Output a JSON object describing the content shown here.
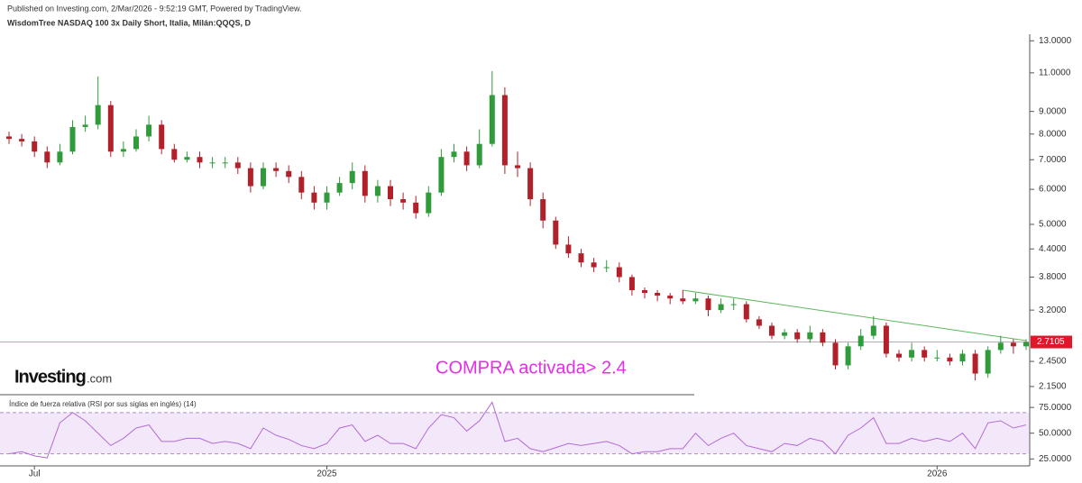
{
  "chart_data": [
    {
      "type": "candlestick",
      "subtitle": "Published on Investing.com, 2/Mar/2026 - 9:52:19 GMT, Powered by TradingView.",
      "title": "WisdomTree NASDAQ 100 3x Daily Short, Italia, Milán:QQQS, D",
      "annotation": "COMPRA activada> 2.4",
      "logo": {
        "name": "Investing",
        "suffix": ".com"
      },
      "categories": [
        null,
        null,
        "Jul",
        null,
        null,
        null,
        null,
        null,
        null,
        null,
        null,
        null,
        null,
        null,
        null,
        null,
        null,
        null,
        null,
        null,
        null,
        null,
        null,
        null,
        null,
        "2025",
        null,
        null,
        null,
        null,
        null,
        null,
        null,
        null,
        null,
        null,
        null,
        null,
        null,
        null,
        null,
        null,
        null,
        null,
        null,
        null,
        null,
        null,
        null,
        null,
        null,
        null,
        null,
        null,
        null,
        null,
        null,
        null,
        null,
        null,
        null,
        null,
        null,
        null,
        null,
        null,
        null,
        null,
        null,
        null,
        null,
        null,
        null,
        "2026",
        null,
        null,
        null,
        null,
        null,
        null,
        null
      ],
      "open": [
        7.9,
        7.8,
        7.7,
        7.3,
        6.9,
        7.3,
        8.3,
        8.4,
        9.3,
        7.3,
        7.4,
        7.9,
        8.4,
        7.4,
        7.0,
        7.1,
        6.9,
        6.9,
        6.9,
        6.7,
        6.1,
        6.7,
        6.6,
        6.4,
        5.9,
        5.6,
        5.9,
        6.2,
        6.6,
        5.8,
        6.1,
        5.7,
        5.6,
        5.3,
        5.9,
        7.1,
        7.3,
        6.8,
        7.6,
        9.8,
        6.8,
        6.7,
        5.7,
        5.1,
        4.5,
        4.3,
        4.1,
        4.0,
        4.0,
        3.8,
        3.55,
        3.5,
        3.45,
        3.4,
        3.35,
        3.4,
        3.2,
        3.3,
        3.3,
        3.05,
        2.95,
        2.8,
        2.85,
        2.75,
        2.85,
        2.7,
        2.4,
        2.65,
        2.8,
        2.95,
        2.55,
        2.5,
        2.6,
        2.5,
        2.5,
        2.45,
        2.55,
        2.3,
        2.6,
        2.7,
        2.65
      ],
      "high": [
        8.1,
        8.0,
        7.9,
        7.5,
        7.6,
        8.6,
        8.8,
        10.8,
        9.5,
        7.7,
        8.2,
        8.8,
        8.6,
        7.6,
        7.3,
        7.3,
        7.1,
        7.1,
        7.1,
        6.9,
        6.9,
        6.9,
        6.8,
        6.6,
        6.1,
        6.1,
        6.4,
        6.9,
        6.8,
        6.3,
        6.3,
        5.9,
        5.8,
        6.1,
        7.4,
        7.6,
        7.5,
        8.2,
        11.1,
        10.2,
        7.3,
        6.9,
        5.9,
        5.2,
        4.7,
        4.4,
        4.2,
        4.15,
        4.1,
        3.85,
        3.6,
        3.55,
        3.5,
        3.55,
        3.5,
        3.45,
        3.4,
        3.4,
        3.35,
        3.1,
        3.0,
        2.9,
        2.9,
        2.95,
        2.9,
        2.75,
        2.7,
        2.9,
        3.1,
        3.0,
        2.6,
        2.7,
        2.65,
        2.6,
        2.55,
        2.6,
        2.6,
        2.65,
        2.8,
        2.75,
        2.75
      ],
      "low": [
        7.6,
        7.5,
        7.1,
        6.7,
        6.8,
        7.2,
        8.1,
        8.2,
        7.1,
        7.1,
        7.3,
        7.7,
        7.2,
        6.9,
        6.9,
        6.7,
        6.7,
        6.7,
        6.5,
        5.9,
        6.0,
        6.4,
        6.2,
        5.7,
        5.4,
        5.4,
        5.8,
        6.0,
        5.6,
        5.6,
        5.5,
        5.4,
        5.15,
        5.2,
        5.8,
        6.9,
        6.6,
        6.7,
        7.5,
        6.5,
        6.4,
        5.5,
        4.9,
        4.4,
        4.2,
        4.0,
        3.9,
        3.9,
        3.7,
        3.45,
        3.4,
        3.35,
        3.3,
        3.3,
        3.3,
        3.1,
        3.15,
        3.2,
        3.0,
        2.9,
        2.75,
        2.75,
        2.7,
        2.7,
        2.65,
        2.35,
        2.35,
        2.6,
        2.75,
        2.5,
        2.45,
        2.45,
        2.45,
        2.45,
        2.4,
        2.4,
        2.22,
        2.25,
        2.55,
        2.55,
        2.6
      ],
      "close": [
        7.8,
        7.7,
        7.3,
        6.9,
        7.3,
        8.3,
        8.4,
        9.3,
        7.3,
        7.4,
        7.9,
        8.4,
        7.4,
        7.0,
        7.1,
        6.9,
        6.9,
        6.9,
        6.7,
        6.1,
        6.7,
        6.6,
        6.4,
        5.9,
        5.6,
        5.9,
        6.2,
        6.6,
        5.8,
        6.1,
        5.7,
        5.6,
        5.3,
        5.9,
        7.1,
        7.3,
        6.8,
        7.6,
        9.8,
        6.8,
        6.7,
        5.7,
        5.1,
        4.5,
        4.3,
        4.1,
        4.0,
        4.0,
        3.8,
        3.55,
        3.5,
        3.45,
        3.4,
        3.35,
        3.4,
        3.2,
        3.3,
        3.3,
        3.05,
        2.95,
        2.8,
        2.85,
        2.75,
        2.85,
        2.7,
        2.4,
        2.65,
        2.8,
        2.95,
        2.55,
        2.5,
        2.6,
        2.5,
        2.5,
        2.45,
        2.55,
        2.3,
        2.6,
        2.7,
        2.65,
        2.71
      ],
      "up_color": "#2f9b3a",
      "down_color": "#b3202a",
      "log_scale": true,
      "ylim": [
        2.07,
        13.45
      ],
      "yticks": [
        {
          "value": 13,
          "label": "13.0000"
        },
        {
          "value": 11,
          "label": "11.0000"
        },
        {
          "value": 9,
          "label": "9.0000"
        },
        {
          "value": 8,
          "label": "8.0000"
        },
        {
          "value": 7,
          "label": "7.0000"
        },
        {
          "value": 6,
          "label": "6.0000"
        },
        {
          "value": 5,
          "label": "5.0000"
        },
        {
          "value": 4.4,
          "label": "4.4000"
        },
        {
          "value": 3.8,
          "label": "3.8000"
        },
        {
          "value": 3.2,
          "label": "3.2000"
        },
        {
          "value": 2.45,
          "label": "2.4500"
        },
        {
          "value": 2.15,
          "label": "2.1500"
        }
      ],
      "last_price": {
        "value": 2.7105,
        "label": "2.7105",
        "color": "#e0162b",
        "line_color": "#f08cb4"
      },
      "trendline": {
        "x": [
          53,
          80
        ],
        "values": [
          3.55,
          2.73
        ],
        "color": "#5cb85c"
      },
      "annotation_color": "#e62ee6"
    },
    {
      "type": "line",
      "title": "Índice de fuerza relativa (RSI por sus siglas en inglés) (14)",
      "values": [
        30,
        32,
        28,
        26,
        60,
        70,
        62,
        50,
        38,
        45,
        55,
        58,
        42,
        42,
        45,
        45,
        40,
        42,
        40,
        35,
        55,
        48,
        44,
        38,
        35,
        40,
        55,
        58,
        42,
        48,
        40,
        40,
        35,
        55,
        68,
        65,
        52,
        62,
        80,
        42,
        45,
        35,
        32,
        36,
        40,
        38,
        40,
        42,
        38,
        30,
        32,
        32,
        35,
        35,
        50,
        38,
        45,
        50,
        38,
        35,
        32,
        40,
        38,
        45,
        42,
        30,
        48,
        55,
        65,
        40,
        40,
        45,
        42,
        45,
        42,
        50,
        35,
        60,
        62,
        55,
        58
      ],
      "color": "#b36ad6",
      "band": [
        30,
        70
      ],
      "ylim": [
        20,
        83
      ],
      "yticks": [
        {
          "value": 75,
          "label": "75.0000"
        },
        {
          "value": 50,
          "label": "50.0000"
        },
        {
          "value": 25,
          "label": "25.0000"
        }
      ]
    }
  ]
}
